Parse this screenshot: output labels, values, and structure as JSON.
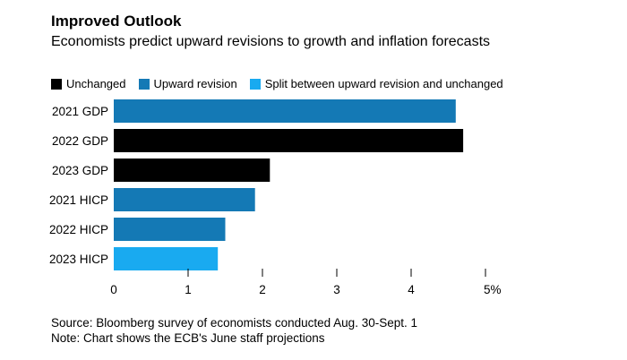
{
  "header": {
    "title": "Improved Outlook",
    "subtitle": "Economists predict upward revisions to growth and inflation forecasts"
  },
  "legend": [
    {
      "label": "Unchanged",
      "color": "#000000"
    },
    {
      "label": "Upward revision",
      "color": "#1479b5"
    },
    {
      "label": "Split between upward revision and unchanged",
      "color": "#19aaf0"
    }
  ],
  "chart_data": {
    "type": "bar",
    "orientation": "horizontal",
    "categories": [
      "2021 GDP",
      "2022 GDP",
      "2023 GDP",
      "2021 HICP",
      "2022 HICP",
      "2023 HICP"
    ],
    "values": [
      4.6,
      4.7,
      2.1,
      1.9,
      1.5,
      1.4
    ],
    "status": [
      "Upward revision",
      "Unchanged",
      "Unchanged",
      "Upward revision",
      "Upward revision",
      "Split between upward revision and unchanged"
    ],
    "x_ticks": [
      "0",
      "1",
      "2",
      "3",
      "4",
      "5%"
    ],
    "xlim": [
      0,
      5
    ],
    "grid": false,
    "legend_position": "top-left"
  },
  "footer": {
    "source": "Source: Bloomberg survey of economists conducted Aug. 30-Sept. 1",
    "note": "Note: Chart shows the ECB's June staff projections"
  }
}
